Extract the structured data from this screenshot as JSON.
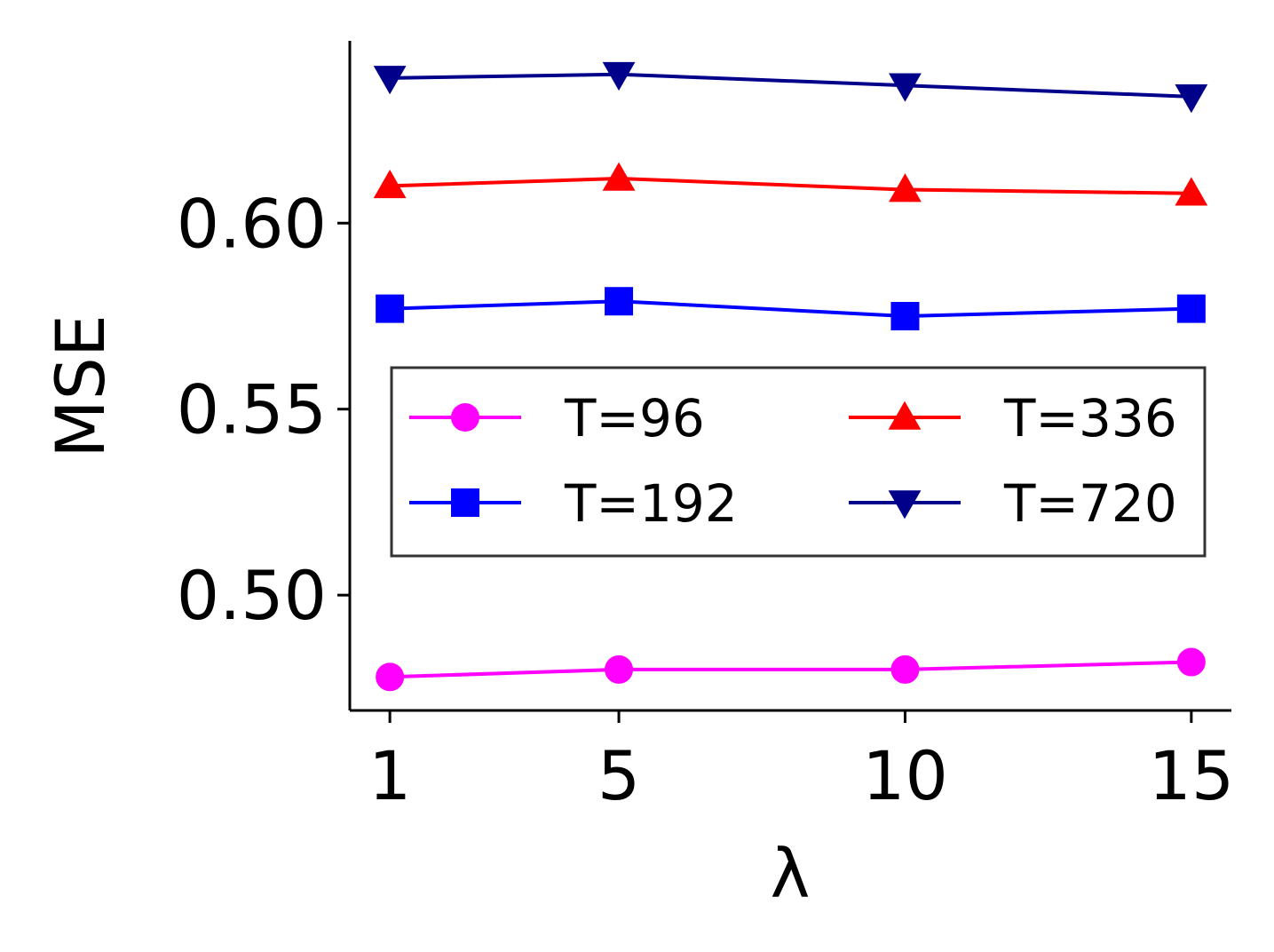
{
  "chart_data": {
    "type": "line",
    "title": "",
    "xlabel": "λ",
    "ylabel": "MSE",
    "x": [
      1,
      5,
      10,
      15
    ],
    "x_tick_labels": [
      "1",
      "5",
      "10",
      "15"
    ],
    "y_ticks": [
      0.5,
      0.55,
      0.6
    ],
    "y_tick_labels": [
      "0.50",
      "0.55",
      "0.60"
    ],
    "xlim": [
      0.3,
      15.7
    ],
    "ylim": [
      0.469,
      0.649
    ],
    "grid": false,
    "legend": {
      "placement": "center-right",
      "columns": 2
    },
    "series": [
      {
        "name": "T=96",
        "color": "#ff00ff",
        "marker": "circle",
        "values": [
          0.478,
          0.48,
          0.48,
          0.482
        ]
      },
      {
        "name": "T=192",
        "color": "#0000ff",
        "marker": "square",
        "values": [
          0.577,
          0.579,
          0.575,
          0.577
        ]
      },
      {
        "name": "T=336",
        "color": "#ff0000",
        "marker": "triangle-up",
        "values": [
          0.61,
          0.612,
          0.609,
          0.608
        ]
      },
      {
        "name": "T=720",
        "color": "#00008b",
        "marker": "triangle-down",
        "values": [
          0.639,
          0.64,
          0.637,
          0.634
        ]
      }
    ]
  }
}
